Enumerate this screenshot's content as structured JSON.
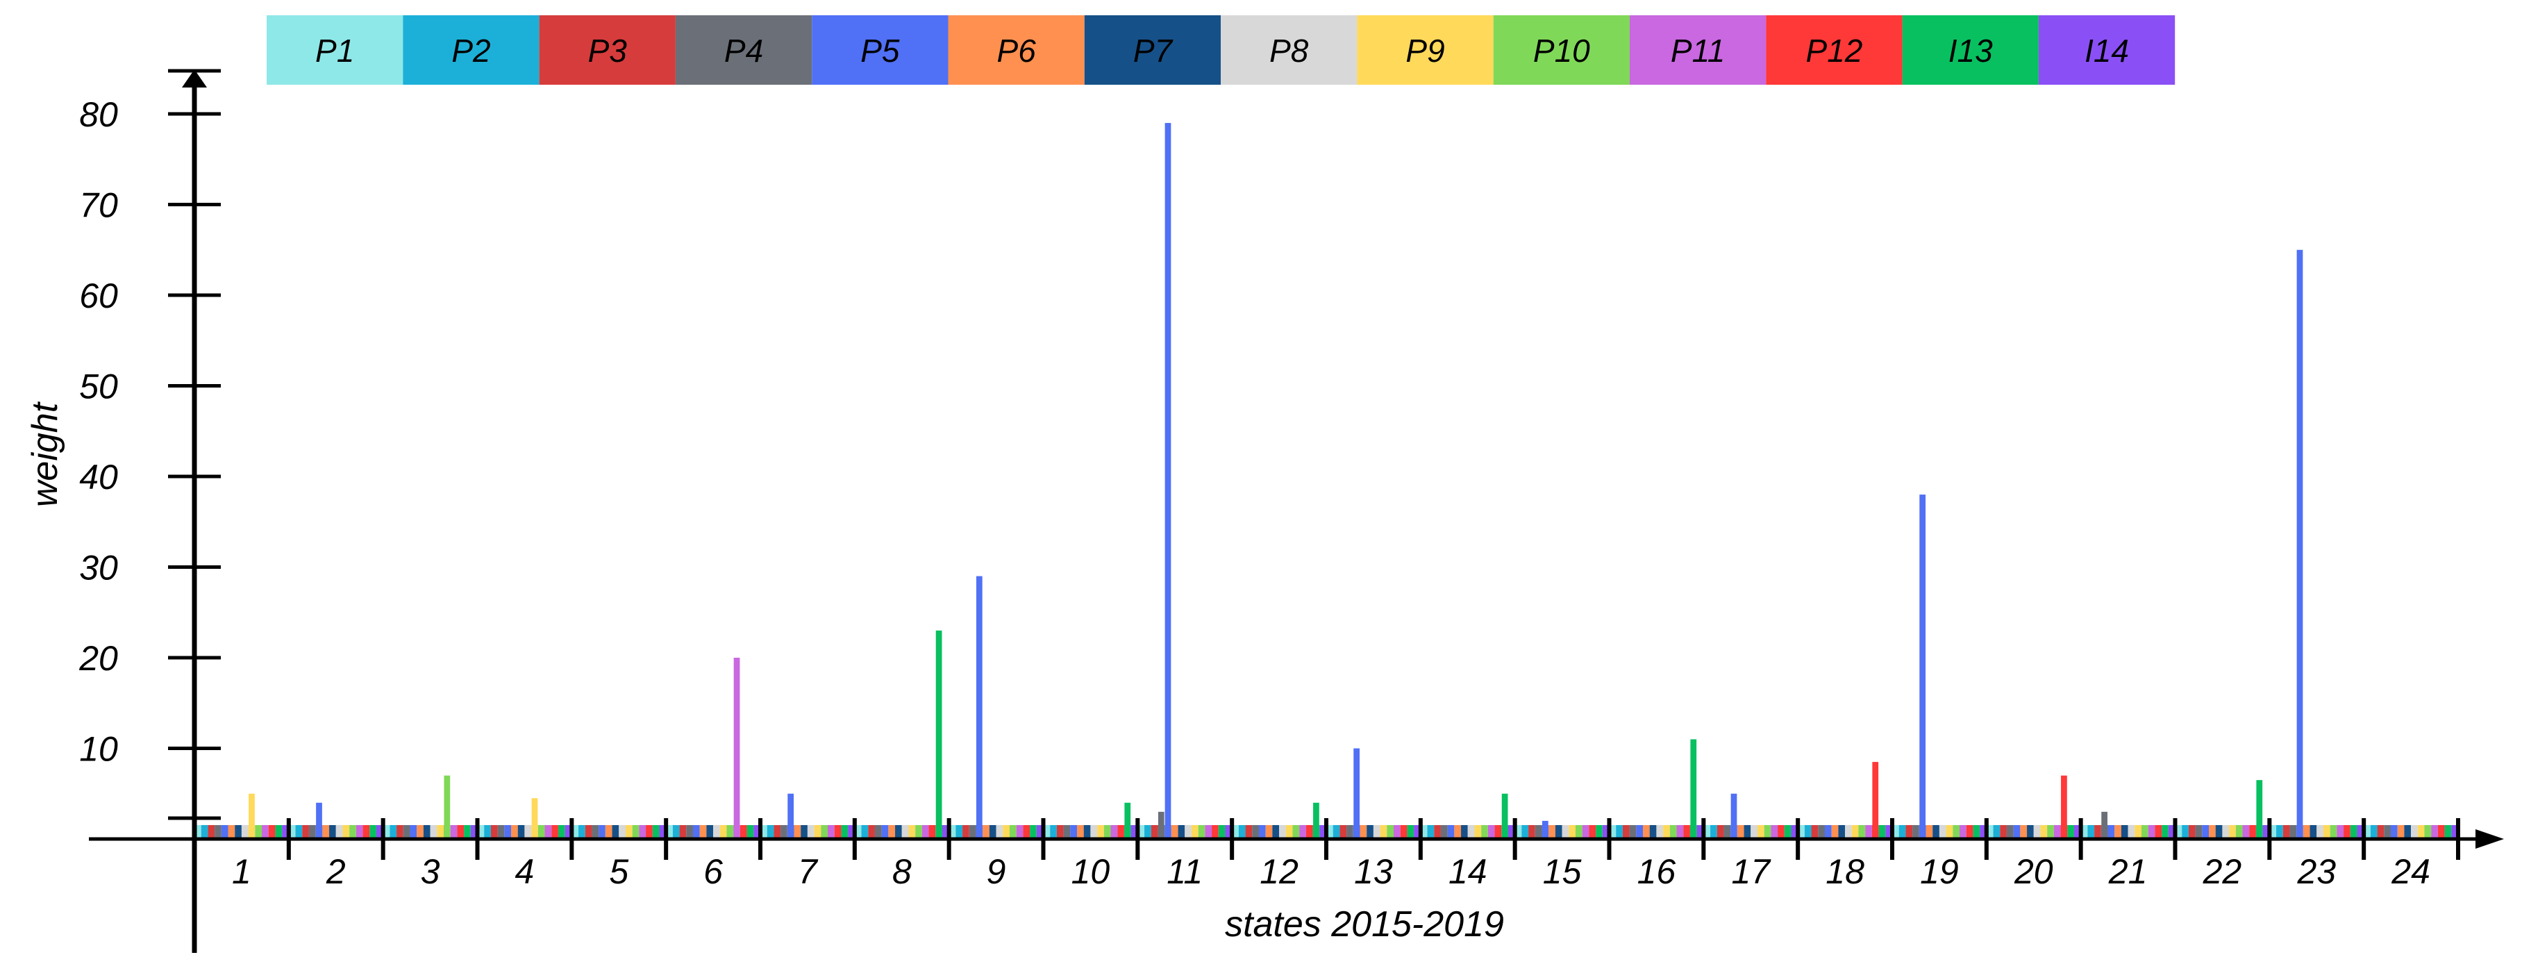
{
  "chart_data": {
    "type": "bar",
    "xlabel": "states 2015-2019",
    "ylabel": "weight",
    "ylim": [
      0,
      80
    ],
    "yticks": [
      10,
      20,
      30,
      40,
      50,
      60,
      70,
      80
    ],
    "categories": [
      "1",
      "2",
      "3",
      "4",
      "5",
      "6",
      "7",
      "8",
      "9",
      "10",
      "11",
      "12",
      "13",
      "14",
      "15",
      "16",
      "17",
      "18",
      "19",
      "20",
      "21",
      "22",
      "23",
      "24"
    ],
    "legend_position": "top",
    "series": [
      {
        "name": "P1",
        "color": "#8fe8e8",
        "values": [
          0,
          0,
          0,
          0,
          0,
          0,
          0,
          0,
          0,
          0,
          0,
          0,
          0,
          0,
          0,
          0,
          0,
          0,
          0,
          0,
          0,
          0,
          0,
          0
        ]
      },
      {
        "name": "P2",
        "color": "#1cb0d8",
        "values": [
          0,
          0,
          0,
          0,
          0,
          0,
          0,
          0,
          0,
          0,
          0,
          0,
          0,
          0,
          0,
          0,
          0,
          0,
          0,
          0,
          0,
          0,
          0,
          0
        ]
      },
      {
        "name": "P3",
        "color": "#d63c3c",
        "values": [
          0,
          0,
          0,
          0,
          0,
          0,
          0,
          0,
          0,
          0,
          0,
          0,
          0,
          0,
          0,
          0,
          0,
          0,
          0,
          0,
          0,
          0,
          0,
          0
        ]
      },
      {
        "name": "P4",
        "color": "#6b7078",
        "values": [
          0,
          0,
          0,
          0,
          0,
          0,
          0,
          0,
          0,
          0,
          3,
          0,
          0,
          0,
          0,
          0,
          0,
          0,
          0,
          0,
          3,
          0,
          0,
          0
        ]
      },
      {
        "name": "P5",
        "color": "#5070f5",
        "values": [
          0,
          4,
          0,
          0,
          0,
          0,
          5,
          0,
          29,
          0,
          79,
          0,
          10,
          0,
          2,
          0,
          5,
          0,
          38,
          0,
          0,
          0,
          65,
          0
        ]
      },
      {
        "name": "P6",
        "color": "#ff9050",
        "values": [
          0,
          0,
          0,
          0,
          0,
          0,
          0,
          0,
          0,
          0,
          0,
          0,
          0,
          0,
          0,
          0,
          0,
          0,
          0,
          0,
          0,
          0,
          0,
          0
        ]
      },
      {
        "name": "P7",
        "color": "#165088",
        "values": [
          0,
          0,
          0,
          0,
          0,
          0,
          0,
          0,
          0,
          0,
          0,
          0,
          0,
          0,
          0,
          0,
          0,
          0,
          0,
          0,
          0,
          0,
          0,
          0
        ]
      },
      {
        "name": "P8",
        "color": "#d8d8d8",
        "values": [
          0,
          0,
          0,
          0,
          1.5,
          0,
          0,
          0,
          0,
          0,
          0,
          0,
          0,
          0,
          0,
          0,
          0,
          0,
          0,
          0,
          0,
          0,
          0,
          0
        ]
      },
      {
        "name": "P9",
        "color": "#ffd95a",
        "values": [
          5,
          0,
          0,
          4.5,
          0,
          0,
          0,
          0,
          0,
          0,
          0,
          0,
          0,
          0,
          0,
          0,
          0,
          0,
          0,
          0,
          0,
          0,
          0,
          0
        ]
      },
      {
        "name": "P10",
        "color": "#80d858",
        "values": [
          0,
          0,
          7,
          0,
          0,
          0,
          0,
          0,
          0,
          0,
          0,
          0,
          0,
          0,
          0,
          0,
          0,
          0,
          0,
          0,
          0,
          0,
          0,
          0
        ]
      },
      {
        "name": "P11",
        "color": "#c968e0",
        "values": [
          0,
          0,
          0,
          0,
          0,
          20,
          0,
          0,
          0,
          0,
          0,
          0,
          0,
          0,
          0,
          0,
          0,
          0,
          0,
          0,
          0,
          0,
          0,
          0
        ]
      },
      {
        "name": "P12",
        "color": "#ff3838",
        "values": [
          0,
          0,
          0,
          0,
          0,
          0,
          0,
          0,
          0,
          0,
          0,
          0,
          0,
          0,
          0,
          0,
          0,
          8.5,
          0,
          7,
          0,
          0,
          0,
          0
        ]
      },
      {
        "name": "I13",
        "color": "#08c060",
        "values": [
          0,
          0,
          0,
          0,
          0,
          0,
          0,
          23,
          0,
          4,
          0,
          4,
          0,
          5,
          0,
          11,
          0,
          0,
          0,
          0,
          0,
          6.5,
          0,
          0
        ]
      },
      {
        "name": "I14",
        "color": "#8a50f5",
        "values": [
          0,
          0,
          0,
          0,
          0,
          0,
          0,
          0,
          0,
          0,
          0,
          0,
          0,
          0,
          0,
          0,
          0,
          0,
          0,
          0,
          0,
          0,
          0,
          0
        ]
      }
    ]
  }
}
